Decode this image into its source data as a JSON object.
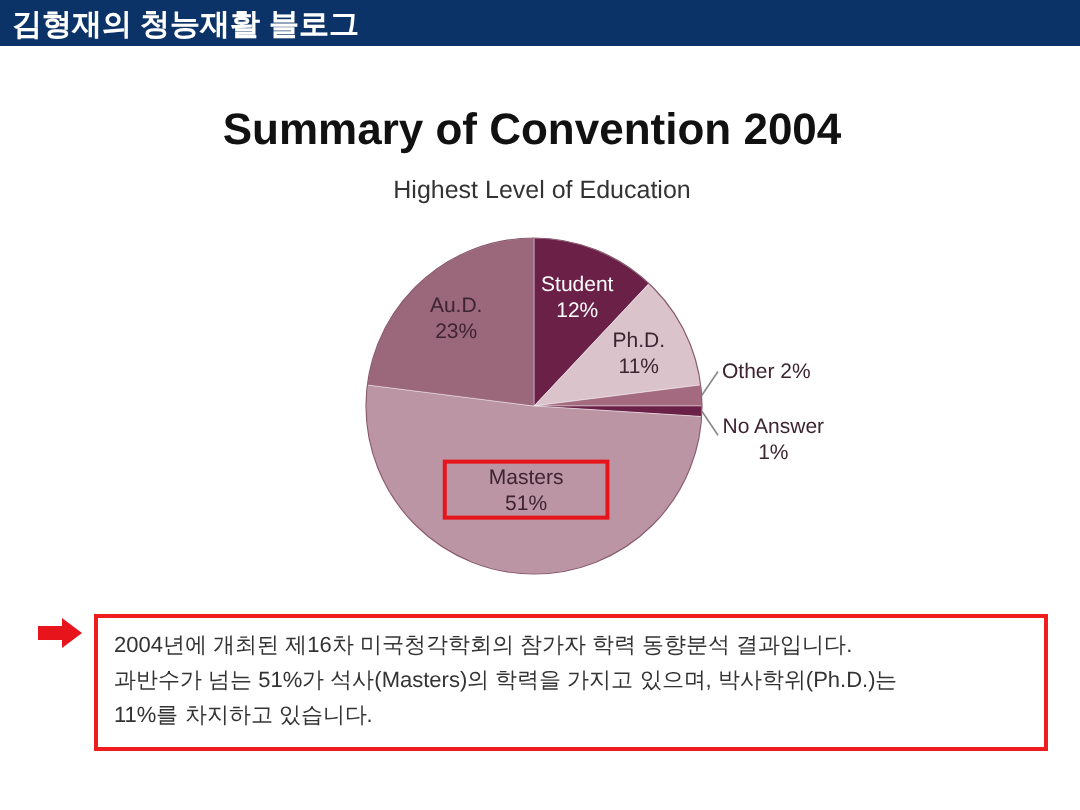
{
  "chart_data": {
    "type": "pie",
    "title": "Summary of Convention 2004",
    "subtitle": "Highest Level of Education",
    "categories": [
      "Student",
      "Ph.D.",
      "Other",
      "No Answer",
      "Masters",
      "Au.D."
    ],
    "values": [
      12,
      11,
      2,
      1,
      51,
      23
    ],
    "value_labels": [
      "12%",
      "11%",
      "2%",
      "1%",
      "51%",
      "23%"
    ],
    "colors": [
      "#6b2048",
      "#dbc3cc",
      "#a46a80",
      "#6b2048",
      "#bb95a3",
      "#9b677b"
    ],
    "annotations": [
      "김형재의 청능재활 블로그",
      "2004년에 개최된 제16차 미국청각학회의 참가자 학력 동향분석 결과입니다.\n과반수가 넘는 51%가 석사(Masters)의 학력을 가지고 있으며, 박사학위(Ph.D.)는 11%를 차지하고 있습니다."
    ]
  }
}
